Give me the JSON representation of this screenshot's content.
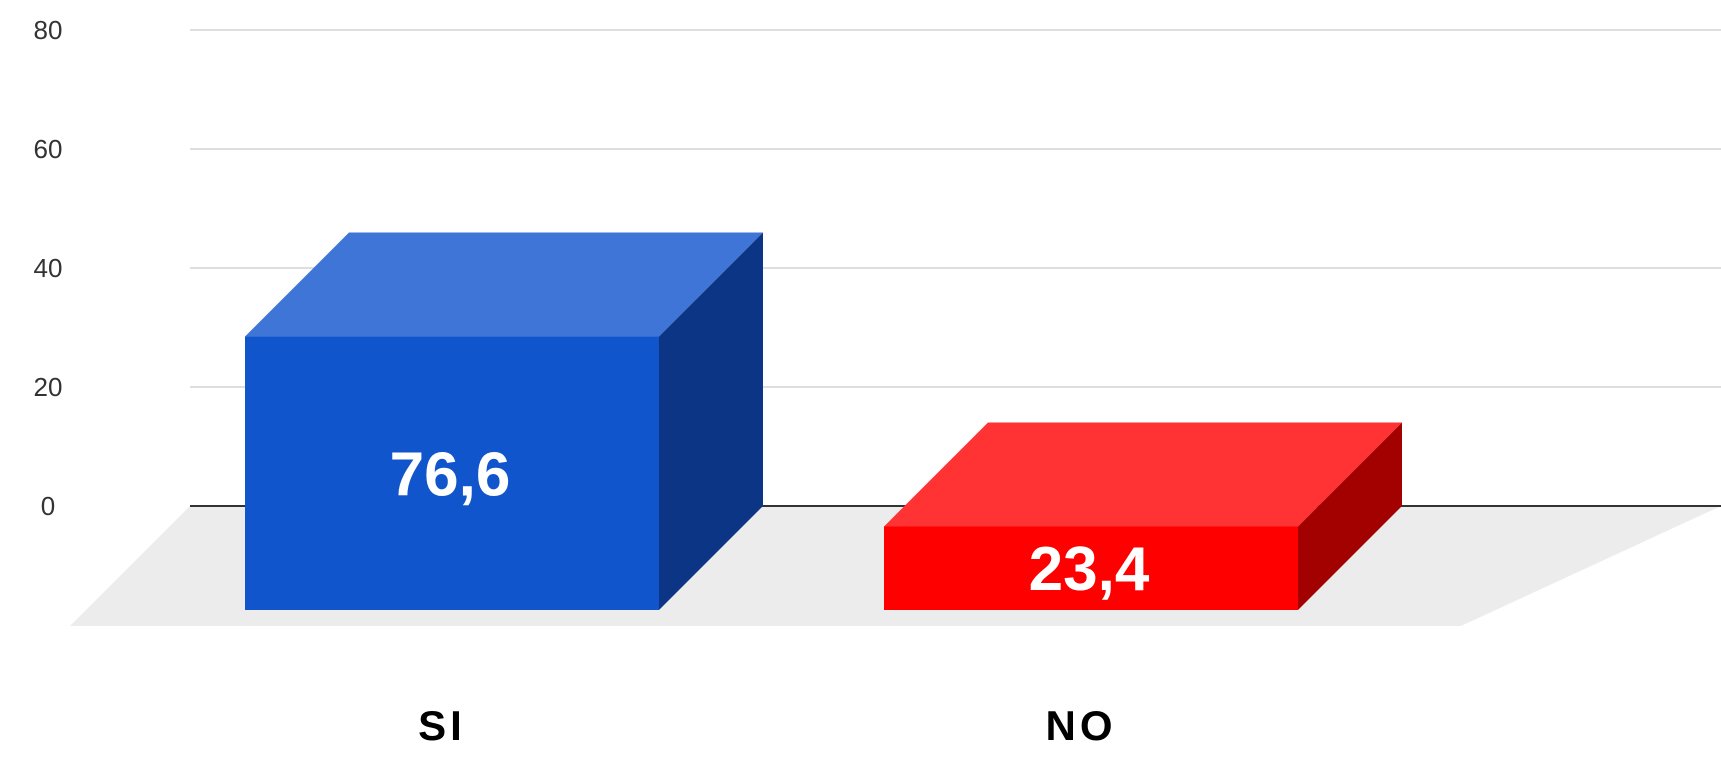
{
  "chart_data": {
    "type": "bar",
    "style": "3d",
    "categories": [
      "SI",
      "NO"
    ],
    "values": [
      76.6,
      23.4
    ],
    "value_labels": [
      "76,6",
      "23,4"
    ],
    "y_ticks": [
      "0",
      "20",
      "40",
      "60",
      "80"
    ],
    "ylim": [
      0,
      80
    ],
    "grid": true,
    "legend": "none",
    "colors": {
      "SI": {
        "front": "#1155cc",
        "top": "#3f75d6",
        "side": "#0c3585"
      },
      "NO": {
        "front": "#ff0000",
        "top": "#ff3333",
        "side": "#a30000"
      },
      "floor": "#ececec",
      "gridline": "#d4d4d4",
      "baseline": "#333333"
    }
  }
}
